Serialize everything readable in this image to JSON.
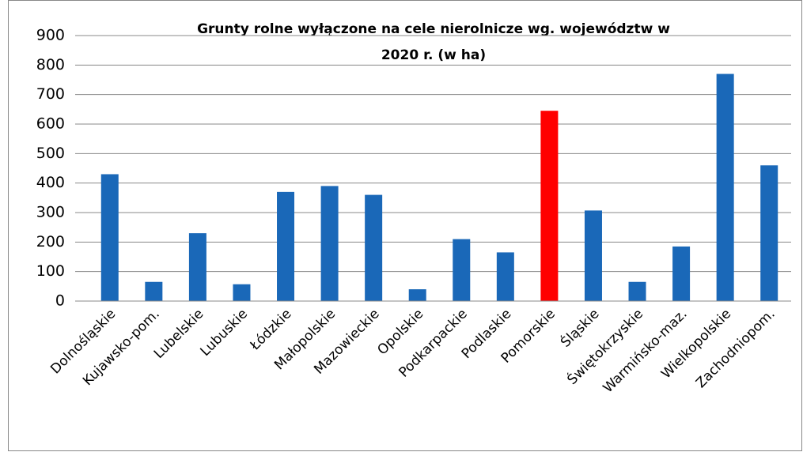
{
  "chart_data": {
    "type": "bar",
    "title": [
      "Grunty rolne wyłączone  na cele nierolnicze wg. województw w",
      "2020 r. (w ha)"
    ],
    "categories": [
      "Dolnośląskie",
      "Kujawsko-pom.",
      "Lubelskie",
      "Lubuskie",
      "Łódzkie",
      "Małopolskie",
      "Mazowieckie",
      "Opolskie",
      "Podkarpackie",
      "Podlaskie",
      "Pomorskie",
      "Śląskie",
      "Świętokrzyskie",
      "Warmińsko-maz.",
      "Wielkopolskie",
      "Zachodniopom."
    ],
    "values": [
      430,
      65,
      230,
      57,
      370,
      390,
      360,
      40,
      210,
      165,
      645,
      307,
      65,
      185,
      770,
      460
    ],
    "colors": [
      "#1a68b8",
      "#1a68b8",
      "#1a68b8",
      "#1a68b8",
      "#1a68b8",
      "#1a68b8",
      "#1a68b8",
      "#1a68b8",
      "#1a68b8",
      "#1a68b8",
      "#ff0000",
      "#1a68b8",
      "#1a68b8",
      "#1a68b8",
      "#1a68b8",
      "#1a68b8"
    ],
    "ylim": [
      0,
      900
    ],
    "yticks": [
      0,
      100,
      200,
      300,
      400,
      500,
      600,
      700,
      800,
      900
    ],
    "grid": true
  }
}
